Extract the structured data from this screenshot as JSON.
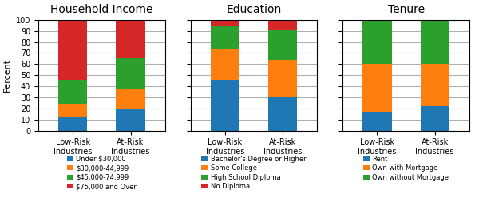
{
  "chart_data": [
    {
      "type": "bar",
      "stacked": true,
      "title": "Household Income",
      "ylabel": "Percent",
      "categories": [
        "Low-Risk Industries",
        "At-Risk Industries"
      ],
      "series": [
        {
          "name": "Under $30,000",
          "values": [
            12,
            20
          ]
        },
        {
          "name": "$30,000-44,999",
          "values": [
            12,
            18
          ]
        },
        {
          "name": "$45,000-74,999",
          "values": [
            22,
            27
          ]
        },
        {
          "name": "$75,000 and Over",
          "values": [
            54,
            35
          ]
        }
      ],
      "ylim": [
        0,
        100
      ],
      "yticks": [
        0,
        10,
        20,
        30,
        40,
        50,
        60,
        70,
        80,
        90,
        100
      ],
      "grid": true
    },
    {
      "type": "bar",
      "stacked": true,
      "title": "Education",
      "categories": [
        "Low-Risk Industries",
        "At-Risk Industries"
      ],
      "series": [
        {
          "name": "Bachelor's Degree or Higher",
          "values": [
            46,
            31
          ]
        },
        {
          "name": "Some College",
          "values": [
            27,
            33
          ]
        },
        {
          "name": "High School Diploma",
          "values": [
            21,
            27
          ]
        },
        {
          "name": "No Diploma",
          "values": [
            6,
            9
          ]
        }
      ],
      "ylim": [
        0,
        100
      ],
      "yticks": [
        0,
        10,
        20,
        30,
        40,
        50,
        60,
        70,
        80,
        90,
        100
      ],
      "grid": true,
      "tick_labels": "x"
    },
    {
      "type": "bar",
      "stacked": true,
      "title": "Tenure",
      "categories": [
        "Low-Risk Industries",
        "At-Risk Industries"
      ],
      "series": [
        {
          "name": "Rent",
          "values": [
            17,
            22
          ]
        },
        {
          "name": "Own with Mortgage",
          "values": [
            43,
            38
          ]
        },
        {
          "name": "Own without Mortgage",
          "values": [
            40,
            40
          ]
        }
      ],
      "ylim": [
        0,
        100
      ],
      "yticks": [
        0,
        10,
        20,
        30,
        40,
        50,
        60,
        70,
        80,
        90,
        100
      ],
      "grid": true,
      "tick_labels": "x"
    }
  ]
}
